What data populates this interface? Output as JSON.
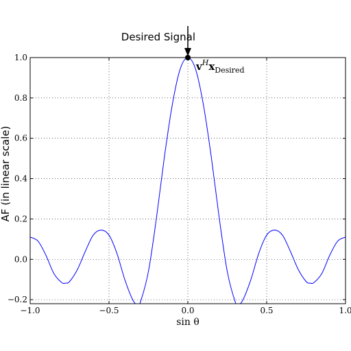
{
  "chart_data": {
    "type": "line",
    "xlabel": "sin θ",
    "ylabel": "AF (in linear scale)",
    "xlim": [
      -1.0,
      1.0
    ],
    "ylim": [
      -0.22,
      1.0
    ],
    "grid": true,
    "x_ticks": [
      "−1.0",
      "−0.5",
      "0.0",
      "0.5",
      "1.0"
    ],
    "x_tick_values": [
      -1.0,
      -0.5,
      0.0,
      0.5,
      1.0
    ],
    "y_ticks": [
      "−0.2",
      "0.0",
      "0.2",
      "0.4",
      "0.6",
      "0.8",
      "1.0"
    ],
    "y_tick_values": [
      -0.2,
      0.0,
      0.2,
      0.4,
      0.6,
      0.8,
      1.0
    ],
    "series": [
      {
        "color": "#0000ff",
        "x": [
          -1.0,
          -0.95,
          -0.9,
          -0.85,
          -0.8,
          -0.775,
          -0.75,
          -0.7,
          -0.65,
          -0.6,
          -0.55,
          -0.5,
          -0.45,
          -0.4,
          -0.35,
          -0.32,
          -0.3,
          -0.25,
          -0.2,
          -0.15,
          -0.1,
          -0.05,
          0.0,
          0.05,
          0.1,
          0.15,
          0.2,
          0.25,
          0.3,
          0.32,
          0.35,
          0.4,
          0.45,
          0.5,
          0.55,
          0.6,
          0.65,
          0.7,
          0.75,
          0.775,
          0.8,
          0.85,
          0.9,
          0.95,
          1.0
        ],
        "y": [
          0.11,
          0.09,
          0.02,
          -0.07,
          -0.115,
          -0.118,
          -0.11,
          -0.05,
          0.04,
          0.12,
          0.145,
          0.12,
          0.03,
          -0.1,
          -0.2,
          -0.225,
          -0.21,
          -0.06,
          0.2,
          0.5,
          0.76,
          0.94,
          1.0,
          0.94,
          0.76,
          0.5,
          0.2,
          -0.06,
          -0.21,
          -0.225,
          -0.2,
          -0.1,
          0.03,
          0.12,
          0.145,
          0.12,
          0.04,
          -0.05,
          -0.11,
          -0.118,
          -0.115,
          -0.07,
          0.02,
          0.09,
          0.11
        ]
      }
    ],
    "annotations": [
      {
        "text": "Desired Signal",
        "type": "arrow",
        "x": 0.0,
        "y": 1.0
      },
      {
        "type": "point",
        "x": 0.0,
        "y": 1.0
      },
      {
        "text_main": "v",
        "text_sup": "H",
        "text_main2": "x",
        "text_sub": "Desired"
      }
    ]
  }
}
